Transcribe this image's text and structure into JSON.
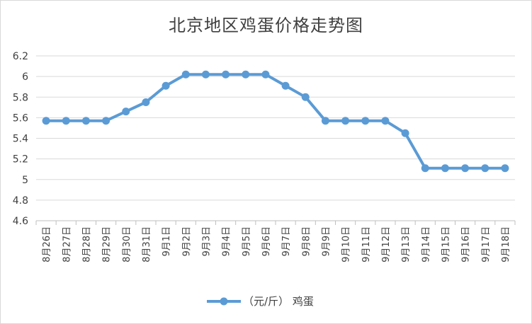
{
  "chart_data": {
    "type": "line",
    "title": "北京地区鸡蛋价格走势图",
    "xlabel": "",
    "ylabel": "",
    "categories": [
      "8月26日",
      "8月27日",
      "8月28日",
      "8月29日",
      "8月30日",
      "8月31日",
      "9月1日",
      "9月2日",
      "9月3日",
      "9月4日",
      "9月5日",
      "9月6日",
      "9月7日",
      "9月8日",
      "9月9日",
      "9月10日",
      "9月11日",
      "9月12日",
      "9月13日",
      "9月14日",
      "9月15日",
      "9月16日",
      "9月17日",
      "9月18日"
    ],
    "y_ticks": [
      "4.6",
      "4.8",
      "5",
      "5.2",
      "5.4",
      "5.6",
      "5.8",
      "6",
      "6.2"
    ],
    "ylim": [
      4.6,
      6.2
    ],
    "grid": "horizontal",
    "legend_position": "bottom",
    "series": [
      {
        "name": "（元/斤） 鸡蛋",
        "color": "#5b9bd5",
        "values": [
          5.57,
          5.57,
          5.57,
          5.57,
          5.66,
          5.75,
          5.91,
          6.02,
          6.02,
          6.02,
          6.02,
          6.02,
          5.91,
          5.8,
          5.57,
          5.57,
          5.57,
          5.57,
          5.45,
          5.11,
          5.11,
          5.11,
          5.11,
          5.11
        ]
      }
    ]
  }
}
